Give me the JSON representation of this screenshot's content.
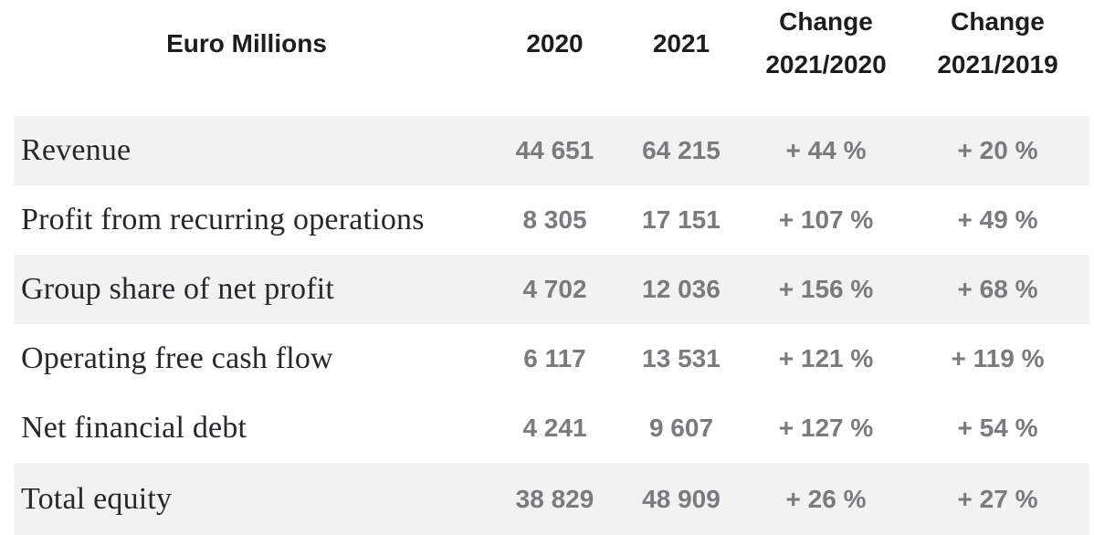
{
  "table": {
    "title_column_header": "Euro Millions",
    "columns": [
      {
        "label": "Euro Millions"
      },
      {
        "label": "2020"
      },
      {
        "label": "2021"
      },
      {
        "label": "Change\n2021/2020"
      },
      {
        "label": "Change\n2021/2019"
      }
    ],
    "colors": {
      "header_text": "#1d1d1f",
      "label_text": "#28282c",
      "value_text": "#7b7b7f",
      "shaded_row_bg": "#f2f2f3",
      "page_bg": "#ffffff"
    }
  },
  "rows": [
    {
      "label": "Revenue",
      "y2020": "44 651",
      "y2021": "64 215",
      "chg_2021_2020": "+ 44 %",
      "chg_2021_2019": "+ 20 %",
      "shaded": true
    },
    {
      "label": "Profit from recurring operations",
      "y2020": "8 305",
      "y2021": "17 151",
      "chg_2021_2020": "+ 107 %",
      "chg_2021_2019": "+ 49 %",
      "shaded": false
    },
    {
      "label": "Group share of net profit",
      "y2020": "4 702",
      "y2021": "12 036",
      "chg_2021_2020": "+ 156 %",
      "chg_2021_2019": "+ 68 %",
      "shaded": true
    },
    {
      "label": "Operating free cash flow",
      "y2020": "6 117",
      "y2021": "13 531",
      "chg_2021_2020": "+ 121 %",
      "chg_2021_2019": "+ 119 %",
      "shaded": false
    },
    {
      "label": "Net financial debt",
      "y2020": "4 241",
      "y2021": "9 607",
      "chg_2021_2020": "+ 127 %",
      "chg_2021_2019": "+ 54 %",
      "shaded": false
    },
    {
      "label": "Total equity",
      "y2020": "38 829",
      "y2021": "48 909",
      "chg_2021_2020": "+ 26 %",
      "chg_2021_2019": "+ 27 %",
      "shaded": true
    }
  ]
}
